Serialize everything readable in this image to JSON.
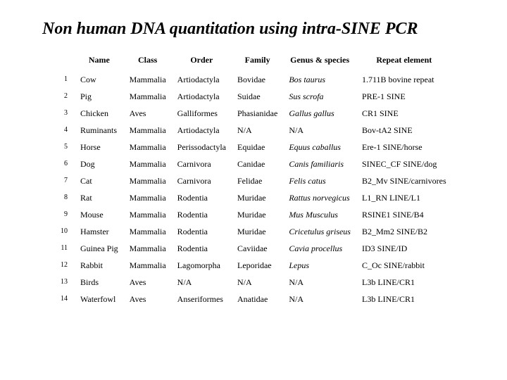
{
  "title": "Non human DNA quantitation using intra-SINE PCR",
  "columns": [
    "Name",
    "Class",
    "Order",
    "Family",
    "Genus & species",
    "Repeat element"
  ],
  "rows": [
    {
      "n": "1",
      "name": "Cow",
      "class": "Mammalia",
      "order": "Artiodactyla",
      "family": "Bovidae",
      "genus": "Bos taurus",
      "genus_italic": true,
      "repeat": "1.711B bovine repeat"
    },
    {
      "n": "2",
      "name": "Pig",
      "class": "Mammalia",
      "order": "Artiodactyla",
      "family": "Suidae",
      "genus": "Sus scrofa",
      "genus_italic": true,
      "repeat": "PRE-1 SINE"
    },
    {
      "n": "3",
      "name": "Chicken",
      "class": "Aves",
      "order": "Galliformes",
      "family": "Phasianidae",
      "genus": "Gallus gallus",
      "genus_italic": true,
      "repeat": "CR1 SINE"
    },
    {
      "n": "4",
      "name": "Ruminants",
      "class": "Mammalia",
      "order": "Artiodactyla",
      "family": "N/A",
      "genus": "N/A",
      "genus_italic": false,
      "repeat": "Bov-tA2 SINE"
    },
    {
      "n": "5",
      "name": "Horse",
      "class": "Mammalia",
      "order": "Perissodactyla",
      "family": "Equidae",
      "genus": "Equus caballus",
      "genus_italic": true,
      "repeat": "Ere-1 SINE/horse"
    },
    {
      "n": "6",
      "name": "Dog",
      "class": "Mammalia",
      "order": "Carnivora",
      "family": "Canidae",
      "genus": "Canis familiaris",
      "genus_italic": true,
      "repeat": "SINEC_CF SINE/dog"
    },
    {
      "n": "7",
      "name": "Cat",
      "class": "Mammalia",
      "order": "Carnivora",
      "family": "Felidae",
      "genus": "Felis catus",
      "genus_italic": true,
      "repeat": "B2_Mv SINE/carnivores"
    },
    {
      "n": "8",
      "name": "Rat",
      "class": "Mammalia",
      "order": "Rodentia",
      "family": "Muridae",
      "genus": "Rattus norvegicus",
      "genus_italic": true,
      "repeat": "L1_RN  LINE/L1"
    },
    {
      "n": "9",
      "name": "Mouse",
      "class": "Mammalia",
      "order": "Rodentia",
      "family": "Muridae",
      "genus": "Mus Musculus",
      "genus_italic": true,
      "repeat": "RSINE1 SINE/B4"
    },
    {
      "n": "10",
      "name": "Hamster",
      "class": "Mammalia",
      "order": "Rodentia",
      "family": "Muridae",
      "genus": "Cricetulus griseus",
      "genus_italic": true,
      "repeat": "B2_Mm2 SINE/B2"
    },
    {
      "n": "11",
      "name": "Guinea Pig",
      "class": "Mammalia",
      "order": "Rodentia",
      "family": "Caviidae",
      "genus": "Cavia procellus",
      "genus_italic": true,
      "repeat": "ID3 SINE/ID"
    },
    {
      "n": "12",
      "name": "Rabbit",
      "class": "Mammalia",
      "order": "Lagomorpha",
      "family": "Leporidae",
      "genus": "Lepus",
      "genus_italic": true,
      "repeat": "C_Oc  SINE/rabbit"
    },
    {
      "n": "13",
      "name": "Birds",
      "class": "Aves",
      "order": "N/A",
      "family": "N/A",
      "genus": "N/A",
      "genus_italic": false,
      "repeat": "L3b  LINE/CR1"
    },
    {
      "n": "14",
      "name": "Waterfowl",
      "class": "Aves",
      "order": "Anseriformes",
      "family": "Anatidae",
      "genus": "N/A",
      "genus_italic": false,
      "repeat": "L3b  LINE/CR1"
    }
  ]
}
